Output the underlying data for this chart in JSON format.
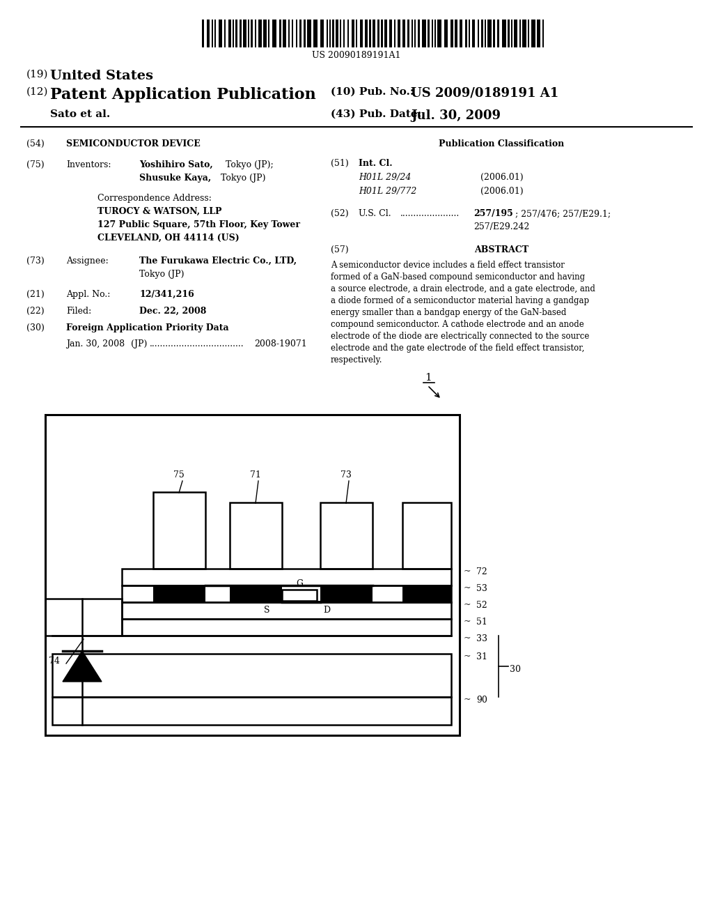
{
  "bg_color": "#ffffff",
  "barcode_text": "US 20090189191A1",
  "title_19": "(19)",
  "title_19b": "United States",
  "title_12": "(12)",
  "title_12b": "Patent Application Publication",
  "pub_no_label": "(10) Pub. No.:",
  "pub_no_value": "US 2009/0189191 A1",
  "author": "Sato et al.",
  "pub_date_label": "(43) Pub. Date:",
  "pub_date_value": "Jul. 30, 2009",
  "field54_label": "(54)",
  "field54_value": "SEMICONDUCTOR DEVICE",
  "field75_label": "(75)",
  "field75_key": "Inventors:",
  "field73_label": "(73)",
  "field73_key": "Assignee:",
  "field73_value1": "The Furukawa Electric Co., LTD,",
  "field73_value2": "Tokyo (JP)",
  "field21_label": "(21)",
  "field21_key": "Appl. No.:",
  "field21_value": "12/341,216",
  "field22_label": "(22)",
  "field22_key": "Filed:",
  "field22_value": "Dec. 22, 2008",
  "field30_label": "(30)",
  "field30_value": "Foreign Application Priority Data",
  "foreign_date": "Jan. 30, 2008",
  "foreign_country": "(JP)",
  "foreign_dots": "...................................",
  "foreign_number": "2008-19071",
  "pub_class_title": "Publication Classification",
  "field51_label": "(51)",
  "field51_key": "Int. Cl.",
  "field51_h1": "H01L 29/24",
  "field51_h1_year": "(2006.01)",
  "field51_h2": "H01L 29/772",
  "field51_h2_year": "(2006.01)",
  "field52_label": "(52)",
  "field52_key": "U.S. Cl.",
  "field52_dots": "......................",
  "field52_val1": "257/195",
  "field52_val2": "; 257/476; 257/E29.1;",
  "field52_val3": "257/E29.242",
  "field57_label": "(57)",
  "field57_title": "ABSTRACT",
  "abstract_line1": "A semiconductor device includes a field effect transistor",
  "abstract_line2": "formed of a GaN-based compound semiconductor and having",
  "abstract_line3": "a source electrode, a drain electrode, and a gate electrode, and",
  "abstract_line4": "a diode formed of a semiconductor material having a gandgap",
  "abstract_line5": "energy smaller than a bandgap energy of the GaN-based",
  "abstract_line6": "compound semiconductor. A cathode electrode and an anode",
  "abstract_line7": "electrode of the diode are electrically connected to the source",
  "abstract_line8": "electrode and the gate electrode of the field effect transistor,",
  "abstract_line9": "respectively.",
  "fig_number": "1"
}
